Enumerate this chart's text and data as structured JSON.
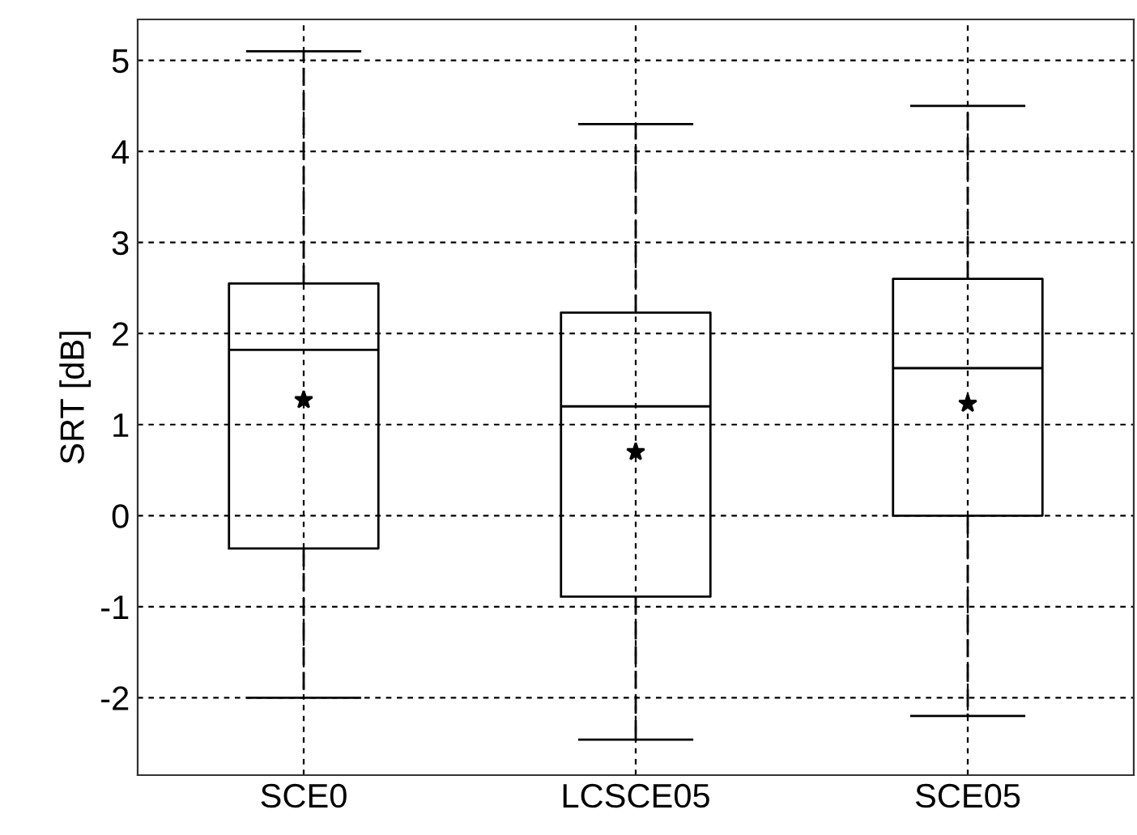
{
  "chart_data": {
    "type": "box",
    "ylabel": "SRT [dB]",
    "categories": [
      "SCE0",
      "LCSCE05",
      "SCE05"
    ],
    "boxes": [
      {
        "low": -2.0,
        "q1": -0.36,
        "median": 1.82,
        "q3": 2.55,
        "high": 5.1,
        "mean": 1.27
      },
      {
        "low": -2.46,
        "q1": -0.89,
        "median": 1.2,
        "q3": 2.23,
        "high": 4.3,
        "mean": 0.7
      },
      {
        "low": -2.2,
        "q1": 0.0,
        "median": 1.62,
        "q3": 2.6,
        "high": 4.5,
        "mean": 1.23
      }
    ],
    "ylim": [
      -2.85,
      5.45
    ],
    "yticks": [
      -2,
      -1,
      0,
      1,
      2,
      3,
      4,
      5
    ],
    "grid": true,
    "marker": "star",
    "color": "#000000"
  }
}
